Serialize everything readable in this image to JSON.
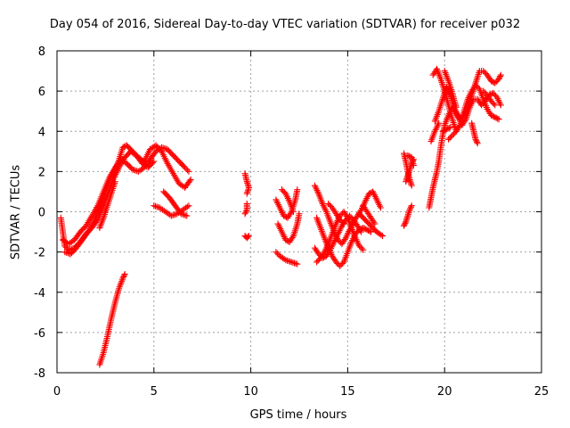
{
  "chart_data": {
    "type": "scatter",
    "title": "Day 054 of 2016, Sidereal Day-to-day VTEC variation (SDTVAR) for receiver p032",
    "xlabel": "GPS time / hours",
    "ylabel": "SDTVAR / TECUs",
    "xlim": [
      0,
      25
    ],
    "ylim": [
      -8,
      8
    ],
    "xticks": [
      0,
      5,
      10,
      15,
      20,
      25
    ],
    "yticks": [
      -8,
      -6,
      -4,
      -2,
      0,
      2,
      4,
      6,
      8
    ],
    "grid": true,
    "marker": "+",
    "color": "#ff0000",
    "tracks": [
      [
        [
          0.2,
          -0.3
        ],
        [
          0.3,
          -1.0
        ],
        [
          0.4,
          -1.7
        ],
        [
          0.6,
          -1.9
        ],
        [
          0.9,
          -1.8
        ],
        [
          1.2,
          -1.5
        ],
        [
          1.5,
          -1.1
        ],
        [
          1.8,
          -0.8
        ],
        [
          2.1,
          -0.4
        ],
        [
          2.3,
          0.1
        ],
        [
          2.6,
          0.8
        ],
        [
          2.9,
          1.6
        ],
        [
          3.2,
          2.2
        ],
        [
          3.5,
          2.7
        ],
        [
          3.8,
          3.0
        ],
        [
          4.1,
          2.8
        ],
        [
          4.4,
          2.4
        ],
        [
          4.7,
          2.2
        ],
        [
          5.0,
          2.5
        ]
      ],
      [
        [
          0.3,
          -1.4
        ],
        [
          0.6,
          -1.6
        ],
        [
          0.9,
          -1.4
        ],
        [
          1.2,
          -1.0
        ],
        [
          1.5,
          -0.7
        ],
        [
          1.8,
          -0.2
        ],
        [
          2.1,
          0.3
        ],
        [
          2.4,
          1.0
        ],
        [
          2.7,
          1.7
        ],
        [
          3.0,
          2.2
        ],
        [
          3.3,
          2.6
        ],
        [
          3.6,
          2.4
        ],
        [
          3.9,
          2.1
        ],
        [
          4.2,
          2.0
        ],
        [
          4.5,
          2.2
        ],
        [
          4.8,
          2.6
        ],
        [
          5.1,
          3.0
        ],
        [
          5.4,
          3.2
        ],
        [
          5.7,
          3.1
        ],
        [
          6.0,
          2.8
        ],
        [
          6.3,
          2.5
        ],
        [
          6.6,
          2.2
        ],
        [
          6.8,
          2.0
        ]
      ],
      [
        [
          0.4,
          -2.0
        ],
        [
          0.7,
          -2.1
        ],
        [
          1.0,
          -1.8
        ],
        [
          1.3,
          -1.4
        ],
        [
          1.6,
          -1.0
        ],
        [
          1.9,
          -0.5
        ],
        [
          2.2,
          0.2
        ],
        [
          2.5,
          1.0
        ],
        [
          2.8,
          1.8
        ],
        [
          3.1,
          2.3
        ],
        [
          3.4,
          3.2
        ],
        [
          3.6,
          3.3
        ],
        [
          3.9,
          3.0
        ],
        [
          4.2,
          2.7
        ],
        [
          4.5,
          2.5
        ],
        [
          4.8,
          3.1
        ],
        [
          5.1,
          3.3
        ],
        [
          5.4,
          3.0
        ],
        [
          5.7,
          2.4
        ],
        [
          6.0,
          1.9
        ],
        [
          6.3,
          1.4
        ],
        [
          6.6,
          1.2
        ],
        [
          6.9,
          1.6
        ]
      ],
      [
        [
          2.2,
          -0.8
        ],
        [
          2.4,
          -0.3
        ],
        [
          2.6,
          0.3
        ],
        [
          2.8,
          0.9
        ],
        [
          3.0,
          1.5
        ]
      ],
      [
        [
          5.0,
          0.3
        ],
        [
          5.3,
          0.2
        ],
        [
          5.6,
          0.0
        ],
        [
          5.9,
          -0.2
        ],
        [
          6.2,
          -0.1
        ],
        [
          6.5,
          0.1
        ],
        [
          6.8,
          0.3
        ]
      ],
      [
        [
          5.5,
          1.0
        ],
        [
          5.8,
          0.7
        ],
        [
          6.1,
          0.3
        ],
        [
          6.4,
          -0.1
        ],
        [
          6.7,
          -0.2
        ]
      ],
      [
        [
          2.2,
          -7.6
        ],
        [
          2.4,
          -7.0
        ],
        [
          2.6,
          -6.2
        ],
        [
          2.8,
          -5.3
        ],
        [
          3.0,
          -4.5
        ],
        [
          3.2,
          -3.8
        ],
        [
          3.4,
          -3.3
        ],
        [
          3.5,
          -3.1
        ]
      ],
      [
        [
          9.7,
          1.9
        ],
        [
          9.8,
          1.5
        ],
        [
          9.9,
          1.2
        ],
        [
          9.8,
          0.9
        ]
      ],
      [
        [
          9.8,
          0.4
        ],
        [
          9.8,
          0.1
        ],
        [
          9.7,
          -0.1
        ]
      ],
      [
        [
          9.7,
          -1.2
        ],
        [
          9.8,
          -1.3
        ],
        [
          9.9,
          -1.2
        ]
      ],
      [
        [
          11.3,
          0.6
        ],
        [
          11.5,
          0.2
        ],
        [
          11.7,
          -0.2
        ],
        [
          11.9,
          -0.3
        ],
        [
          12.1,
          0.0
        ],
        [
          12.3,
          0.6
        ],
        [
          12.4,
          1.1
        ]
      ],
      [
        [
          11.4,
          -0.6
        ],
        [
          11.6,
          -1.0
        ],
        [
          11.8,
          -1.4
        ],
        [
          12.0,
          -1.5
        ],
        [
          12.2,
          -1.2
        ],
        [
          12.4,
          -0.6
        ],
        [
          12.5,
          -0.1
        ]
      ],
      [
        [
          11.3,
          -2.0
        ],
        [
          11.5,
          -2.2
        ],
        [
          11.8,
          -2.4
        ],
        [
          12.1,
          -2.5
        ],
        [
          12.4,
          -2.6
        ]
      ],
      [
        [
          11.6,
          1.1
        ],
        [
          11.8,
          0.9
        ],
        [
          12.0,
          0.5
        ],
        [
          12.2,
          0.0
        ]
      ],
      [
        [
          13.3,
          1.3
        ],
        [
          13.5,
          0.9
        ],
        [
          13.7,
          0.4
        ],
        [
          13.9,
          0.0
        ],
        [
          14.1,
          -0.5
        ],
        [
          14.3,
          -1.0
        ],
        [
          14.5,
          -1.4
        ],
        [
          14.7,
          -1.6
        ],
        [
          14.9,
          -1.3
        ],
        [
          15.1,
          -0.9
        ],
        [
          15.3,
          -0.5
        ],
        [
          15.5,
          -0.2
        ],
        [
          15.7,
          0.1
        ],
        [
          15.9,
          0.5
        ],
        [
          16.1,
          0.9
        ],
        [
          16.3,
          1.0
        ],
        [
          16.5,
          0.6
        ],
        [
          16.7,
          0.2
        ]
      ],
      [
        [
          13.4,
          -0.3
        ],
        [
          13.6,
          -0.8
        ],
        [
          13.8,
          -1.3
        ],
        [
          14.0,
          -1.8
        ],
        [
          14.2,
          -2.2
        ],
        [
          14.4,
          -2.5
        ],
        [
          14.6,
          -2.7
        ],
        [
          14.8,
          -2.5
        ],
        [
          15.0,
          -2.0
        ],
        [
          15.2,
          -1.5
        ],
        [
          15.4,
          -1.1
        ],
        [
          15.6,
          -0.9
        ],
        [
          15.8,
          -0.8
        ],
        [
          16.0,
          -0.9
        ],
        [
          16.2,
          -1.0
        ]
      ],
      [
        [
          13.3,
          -1.8
        ],
        [
          13.5,
          -2.1
        ],
        [
          13.7,
          -2.3
        ],
        [
          13.9,
          -2.2
        ],
        [
          14.1,
          -1.9
        ],
        [
          14.3,
          -1.5
        ],
        [
          14.5,
          -1.1
        ],
        [
          14.7,
          -0.7
        ],
        [
          14.9,
          -0.4
        ],
        [
          15.1,
          -0.2
        ],
        [
          15.3,
          -0.4
        ],
        [
          15.5,
          -0.7
        ],
        [
          15.7,
          -1.0
        ]
      ],
      [
        [
          13.4,
          -2.5
        ],
        [
          13.6,
          -2.3
        ],
        [
          13.8,
          -2.0
        ],
        [
          14.0,
          -1.6
        ],
        [
          14.2,
          -1.1
        ],
        [
          14.4,
          -0.6
        ],
        [
          14.6,
          -0.2
        ],
        [
          14.8,
          0.0
        ],
        [
          15.0,
          -0.3
        ],
        [
          15.2,
          -0.8
        ],
        [
          15.4,
          -1.3
        ],
        [
          15.6,
          -1.7
        ],
        [
          15.8,
          -1.9
        ]
      ],
      [
        [
          14.0,
          0.4
        ],
        [
          14.2,
          0.2
        ],
        [
          14.4,
          -0.1
        ],
        [
          14.6,
          -0.4
        ],
        [
          14.8,
          -0.6
        ]
      ],
      [
        [
          15.6,
          -0.1
        ],
        [
          15.9,
          -0.4
        ],
        [
          16.2,
          -0.7
        ],
        [
          16.5,
          -1.0
        ],
        [
          16.8,
          -1.2
        ]
      ],
      [
        [
          15.8,
          0.3
        ],
        [
          16.0,
          0.0
        ],
        [
          16.2,
          -0.3
        ],
        [
          16.4,
          -0.6
        ]
      ],
      [
        [
          17.9,
          2.9
        ],
        [
          18.0,
          2.5
        ],
        [
          18.1,
          2.0
        ],
        [
          18.2,
          1.6
        ],
        [
          18.3,
          1.3
        ]
      ],
      [
        [
          18.0,
          1.5
        ],
        [
          18.1,
          1.8
        ],
        [
          18.2,
          2.1
        ],
        [
          18.3,
          2.4
        ],
        [
          18.4,
          2.6
        ]
      ],
      [
        [
          18.1,
          2.8
        ],
        [
          18.3,
          2.7
        ],
        [
          18.4,
          2.3
        ]
      ],
      [
        [
          17.9,
          -0.7
        ],
        [
          18.0,
          -0.5
        ],
        [
          18.1,
          -0.2
        ],
        [
          18.2,
          0.1
        ],
        [
          18.3,
          0.3
        ]
      ],
      [
        [
          19.2,
          0.2
        ],
        [
          19.3,
          0.7
        ],
        [
          19.4,
          1.2
        ],
        [
          19.5,
          1.6
        ],
        [
          19.6,
          2.0
        ],
        [
          19.7,
          2.5
        ],
        [
          19.8,
          3.2
        ],
        [
          19.9,
          3.8
        ],
        [
          20.0,
          4.3
        ],
        [
          20.2,
          4.8
        ],
        [
          20.4,
          5.2
        ],
        [
          20.6,
          4.9
        ],
        [
          20.8,
          4.6
        ],
        [
          21.0,
          4.8
        ],
        [
          21.2,
          5.2
        ],
        [
          21.4,
          5.8
        ],
        [
          21.6,
          6.4
        ],
        [
          21.8,
          7.0
        ],
        [
          22.0,
          7.0
        ],
        [
          22.2,
          6.8
        ],
        [
          22.4,
          6.5
        ],
        [
          22.6,
          6.4
        ],
        [
          22.8,
          6.6
        ],
        [
          22.9,
          6.8
        ]
      ],
      [
        [
          19.4,
          6.8
        ],
        [
          19.6,
          7.1
        ],
        [
          19.8,
          6.6
        ],
        [
          20.0,
          6.0
        ],
        [
          20.2,
          5.3
        ],
        [
          20.4,
          4.6
        ],
        [
          20.6,
          4.0
        ],
        [
          20.8,
          4.3
        ],
        [
          21.0,
          5.0
        ],
        [
          21.2,
          5.6
        ],
        [
          21.4,
          6.0
        ],
        [
          21.6,
          6.3
        ],
        [
          21.8,
          6.1
        ],
        [
          22.0,
          5.6
        ],
        [
          22.2,
          5.1
        ],
        [
          22.4,
          4.8
        ],
        [
          22.6,
          4.7
        ],
        [
          22.8,
          4.6
        ]
      ],
      [
        [
          19.5,
          4.5
        ],
        [
          19.7,
          5.0
        ],
        [
          19.9,
          5.6
        ],
        [
          20.1,
          6.2
        ],
        [
          20.3,
          5.8
        ],
        [
          20.5,
          5.2
        ],
        [
          20.7,
          4.7
        ],
        [
          20.9,
          4.3
        ],
        [
          21.1,
          4.6
        ],
        [
          21.3,
          5.2
        ],
        [
          21.5,
          5.6
        ],
        [
          21.7,
          5.6
        ],
        [
          21.9,
          5.3
        ],
        [
          22.1,
          5.5
        ],
        [
          22.3,
          5.8
        ],
        [
          22.5,
          5.9
        ],
        [
          22.7,
          5.7
        ],
        [
          22.9,
          5.3
        ]
      ],
      [
        [
          19.3,
          3.5
        ],
        [
          19.5,
          4.0
        ],
        [
          19.7,
          4.4
        ]
      ],
      [
        [
          20.0,
          7.0
        ],
        [
          20.2,
          6.5
        ],
        [
          20.4,
          5.9
        ],
        [
          20.6,
          5.2
        ]
      ],
      [
        [
          19.9,
          4.0
        ],
        [
          20.1,
          4.1
        ],
        [
          20.3,
          4.2
        ]
      ],
      [
        [
          20.2,
          3.6
        ],
        [
          20.4,
          3.8
        ],
        [
          20.6,
          4.0
        ]
      ],
      [
        [
          21.4,
          4.4
        ],
        [
          21.5,
          4.0
        ],
        [
          21.6,
          3.6
        ],
        [
          21.7,
          3.4
        ]
      ],
      [
        [
          22.0,
          6.0
        ],
        [
          22.2,
          5.8
        ],
        [
          22.4,
          5.5
        ],
        [
          22.6,
          5.3
        ]
      ]
    ]
  }
}
